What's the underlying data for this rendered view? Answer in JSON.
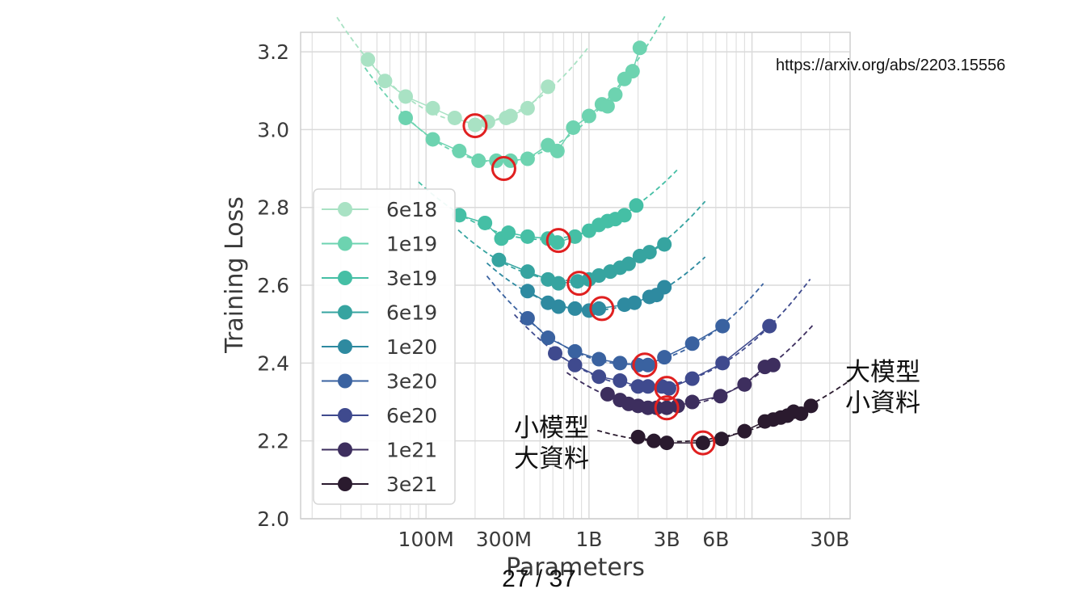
{
  "source_url": "https://arxiv.org/abs/2203.15556",
  "page_indicator": "27 / 37",
  "annotation_large_model": [
    "大模型",
    "小資料"
  ],
  "annotation_small_model": [
    "小模型",
    "大資料"
  ],
  "chart_data": {
    "type": "scatter",
    "xlabel": "Parameters",
    "ylabel": "Training Loss",
    "x_scale": "log",
    "xlim": [
      17000000,
      40000000000
    ],
    "ylim": [
      2.0,
      3.25
    ],
    "x_ticks": [
      {
        "label": "100M",
        "value": 100000000
      },
      {
        "label": "300M",
        "value": 300000000
      },
      {
        "label": "1B",
        "value": 1000000000
      },
      {
        "label": "3B",
        "value": 3000000000
      },
      {
        "label": "6B",
        "value": 6000000000
      },
      {
        "label": "30B",
        "value": 30000000000
      }
    ],
    "y_ticks": [
      2.0,
      2.2,
      2.4,
      2.6,
      2.8,
      3.0,
      3.2
    ],
    "grid": true,
    "legend_position": "left",
    "optimum_marker_color": "#e02020",
    "series": [
      {
        "name": "6e18",
        "color": "#a9e2c4",
        "points": [
          [
            44000000,
            3.18
          ],
          [
            56000000,
            3.125
          ],
          [
            75000000,
            3.085
          ],
          [
            110000000,
            3.055
          ],
          [
            150000000,
            3.03
          ],
          [
            200000000,
            3.012
          ],
          [
            240000000,
            3.02
          ],
          [
            310000000,
            3.03
          ],
          [
            330000000,
            3.035
          ],
          [
            420000000,
            3.055
          ],
          [
            560000000,
            3.11
          ]
        ],
        "optimum": [
          200000000,
          3.01
        ]
      },
      {
        "name": "1e19",
        "color": "#6dd3b0",
        "points": [
          [
            75000000,
            3.03
          ],
          [
            110000000,
            2.975
          ],
          [
            160000000,
            2.945
          ],
          [
            210000000,
            2.92
          ],
          [
            270000000,
            2.92
          ],
          [
            330000000,
            2.92
          ],
          [
            420000000,
            2.925
          ],
          [
            560000000,
            2.96
          ],
          [
            640000000,
            2.945
          ],
          [
            800000000,
            3.005
          ],
          [
            1000000000,
            3.035
          ],
          [
            1200000000,
            3.065
          ],
          [
            1300000000,
            3.06
          ],
          [
            1450000000,
            3.09
          ],
          [
            1650000000,
            3.13
          ],
          [
            1850000000,
            3.15
          ],
          [
            2050000000,
            3.21
          ]
        ],
        "optimum": [
          300000000,
          2.9
        ]
      },
      {
        "name": "3e19",
        "color": "#45bfa5",
        "points": [
          [
            160000000,
            2.78
          ],
          [
            230000000,
            2.76
          ],
          [
            290000000,
            2.72
          ],
          [
            320000000,
            2.735
          ],
          [
            420000000,
            2.725
          ],
          [
            560000000,
            2.72
          ],
          [
            640000000,
            2.71
          ],
          [
            820000000,
            2.725
          ],
          [
            1000000000,
            2.74
          ],
          [
            1150000000,
            2.755
          ],
          [
            1300000000,
            2.765
          ],
          [
            1450000000,
            2.77
          ],
          [
            1650000000,
            2.78
          ],
          [
            1950000000,
            2.805
          ]
        ],
        "optimum": [
          650000000,
          2.715
        ]
      },
      {
        "name": "6e19",
        "color": "#36a4a0",
        "points": [
          [
            280000000,
            2.665
          ],
          [
            420000000,
            2.635
          ],
          [
            560000000,
            2.615
          ],
          [
            650000000,
            2.605
          ],
          [
            850000000,
            2.61
          ],
          [
            1000000000,
            2.615
          ],
          [
            1150000000,
            2.625
          ],
          [
            1350000000,
            2.635
          ],
          [
            1550000000,
            2.645
          ],
          [
            1750000000,
            2.655
          ],
          [
            2050000000,
            2.675
          ],
          [
            2350000000,
            2.685
          ],
          [
            2900000000,
            2.705
          ]
        ],
        "optimum": [
          870000000,
          2.605
        ]
      },
      {
        "name": "1e20",
        "color": "#2e8aa0",
        "points": [
          [
            420000000,
            2.585
          ],
          [
            560000000,
            2.555
          ],
          [
            650000000,
            2.545
          ],
          [
            820000000,
            2.54
          ],
          [
            1000000000,
            2.535
          ],
          [
            1150000000,
            2.54
          ],
          [
            1650000000,
            2.55
          ],
          [
            1900000000,
            2.555
          ],
          [
            2350000000,
            2.57
          ],
          [
            2600000000,
            2.575
          ],
          [
            2900000000,
            2.595
          ]
        ],
        "optimum": [
          1200000000,
          2.54
        ]
      },
      {
        "name": "3e20",
        "color": "#3a62a0",
        "points": [
          [
            420000000,
            2.515
          ],
          [
            560000000,
            2.465
          ],
          [
            820000000,
            2.43
          ],
          [
            1150000000,
            2.41
          ],
          [
            1550000000,
            2.4
          ],
          [
            2000000000,
            2.395
          ],
          [
            2300000000,
            2.395
          ],
          [
            2900000000,
            2.415
          ],
          [
            4300000000,
            2.45
          ],
          [
            6600000000,
            2.495
          ]
        ],
        "optimum": [
          2200000000,
          2.395
        ]
      },
      {
        "name": "6e20",
        "color": "#3f4a8e",
        "points": [
          [
            620000000,
            2.425
          ],
          [
            820000000,
            2.395
          ],
          [
            1150000000,
            2.365
          ],
          [
            1550000000,
            2.355
          ],
          [
            2000000000,
            2.34
          ],
          [
            2300000000,
            2.34
          ],
          [
            2800000000,
            2.34
          ],
          [
            3100000000,
            2.335
          ],
          [
            4300000000,
            2.36
          ],
          [
            6600000000,
            2.4
          ],
          [
            12800000000,
            2.495
          ]
        ],
        "optimum": [
          3000000000,
          2.335
        ]
      },
      {
        "name": "1e21",
        "color": "#3d2e5e",
        "points": [
          [
            1300000000,
            2.32
          ],
          [
            1550000000,
            2.305
          ],
          [
            1750000000,
            2.295
          ],
          [
            2000000000,
            2.29
          ],
          [
            2300000000,
            2.285
          ],
          [
            2600000000,
            2.285
          ],
          [
            3000000000,
            2.285
          ],
          [
            3500000000,
            2.29
          ],
          [
            4300000000,
            2.3
          ],
          [
            6400000000,
            2.315
          ],
          [
            9000000000,
            2.345
          ],
          [
            12000000000,
            2.39
          ],
          [
            13500000000,
            2.395
          ]
        ],
        "optimum": [
          3000000000,
          2.285
        ]
      },
      {
        "name": "3e21",
        "color": "#2a1a2e",
        "points": [
          [
            2000000000,
            2.21
          ],
          [
            2500000000,
            2.2
          ],
          [
            3000000000,
            2.195
          ],
          [
            5000000000,
            2.195
          ],
          [
            6500000000,
            2.205
          ],
          [
            9000000000,
            2.225
          ],
          [
            12000000000,
            2.25
          ],
          [
            13500000000,
            2.255
          ],
          [
            15000000000,
            2.26
          ],
          [
            16500000000,
            2.265
          ],
          [
            18000000000,
            2.275
          ],
          [
            20000000000,
            2.27
          ],
          [
            23000000000,
            2.29
          ]
        ],
        "optimum": [
          5000000000,
          2.195
        ]
      }
    ]
  }
}
